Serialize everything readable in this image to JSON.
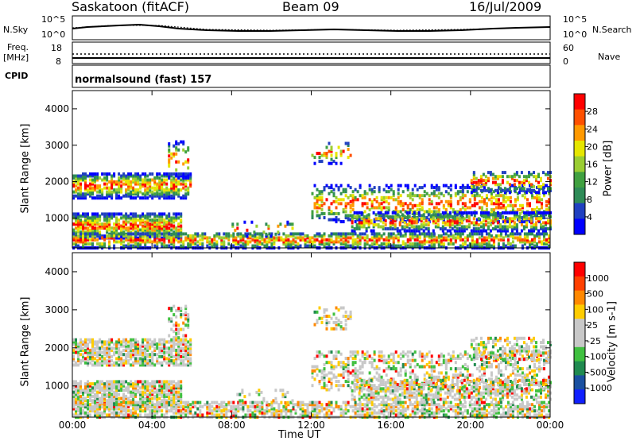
{
  "header": {
    "station": "Saskatoon (fitACF)",
    "beam": "Beam 09",
    "date": "16/Jul/2009"
  },
  "noise_panel": {
    "left_label": "N.Sky",
    "right_label": "N.Search",
    "left_ticks": [
      "10^5",
      "10^0"
    ],
    "right_ticks": [
      "10^5",
      "10^0"
    ]
  },
  "freq_panel": {
    "left_label_1": "Freq.",
    "left_label_2": "[MHz]",
    "right_label": "Nave",
    "left_ticks": [
      "18",
      "8"
    ],
    "right_ticks": [
      "60",
      "0"
    ]
  },
  "cpid_panel": {
    "label": "CPID",
    "mode": "normalsound (fast) 157"
  },
  "chart_data": [
    {
      "type": "heatmap",
      "name": "power",
      "ylabel": "Slant Range [km]",
      "ylim": [
        180,
        4500
      ],
      "yticks": [
        "4000",
        "3000",
        "2000",
        "1000"
      ],
      "colorbar_label": "Power [dB]",
      "colorbar_ticks": [
        "28",
        "24",
        "20",
        "16",
        "12",
        "8",
        "4"
      ],
      "colors": [
        "#0000ff",
        "#2040c0",
        "#2e8b57",
        "#40a040",
        "#9acd32",
        "#e6e600",
        "#ff9900",
        "#ff5000",
        "#ff0000"
      ]
    },
    {
      "type": "heatmap",
      "name": "velocity",
      "ylabel": "Slant Range [km]",
      "ylim": [
        180,
        4500
      ],
      "yticks": [
        "4000",
        "3000",
        "2000",
        "1000"
      ],
      "colorbar_label": "Velocity [m s-1]",
      "colorbar_ticks": [
        "1000",
        "500",
        "100",
        "25",
        "-25",
        "-100",
        "-500",
        "-1000"
      ],
      "colors": [
        "#1020ff",
        "#1a50a0",
        "#208a50",
        "#40c040",
        "#c8c8c8",
        "#c8c8c8",
        "#ffcc00",
        "#ff8800",
        "#ff4000",
        "#ff0000"
      ]
    }
  ],
  "time_axis": {
    "label": "Time UT",
    "ticks": [
      "00:00",
      "04:00",
      "08:00",
      "12:00",
      "16:00",
      "20:00",
      "00:00"
    ]
  }
}
